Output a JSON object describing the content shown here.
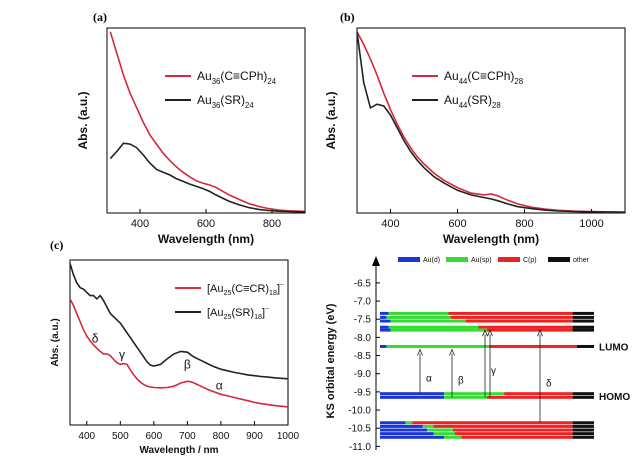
{
  "chart_data": [
    {
      "type": "line",
      "panel_label": "(a)",
      "xlabel": "Wavelength (nm)",
      "ylabel": "Abs. (a.u.)",
      "xlim": [
        300,
        900
      ],
      "x_ticks": [
        "400",
        "600",
        "800"
      ],
      "legend_placement": "top-right",
      "series": [
        {
          "name_base": "Au",
          "name_parts": [
            [
              "Au",
              "n"
            ],
            [
              "36",
              "sub"
            ],
            [
              "(C≡CPh)",
              "n"
            ],
            [
              "24",
              "sub"
            ]
          ],
          "color": "#d42a3a",
          "x": [
            310,
            330,
            350,
            370,
            390,
            410,
            430,
            450,
            470,
            490,
            510,
            530,
            550,
            570,
            590,
            610,
            630,
            650,
            670,
            700,
            730,
            760,
            790,
            820,
            850,
            880,
            900
          ],
          "y": [
            1.0,
            0.88,
            0.76,
            0.66,
            0.58,
            0.5,
            0.43,
            0.38,
            0.33,
            0.29,
            0.255,
            0.225,
            0.2,
            0.178,
            0.165,
            0.155,
            0.142,
            0.12,
            0.1,
            0.075,
            0.052,
            0.036,
            0.024,
            0.016,
            0.012,
            0.01,
            0.009
          ]
        },
        {
          "name_parts": [
            [
              "Au",
              "n"
            ],
            [
              "36",
              "sub"
            ],
            [
              "(SR)",
              "n"
            ],
            [
              "24",
              "sub"
            ]
          ],
          "color": "#222222",
          "x": [
            310,
            330,
            350,
            370,
            390,
            410,
            430,
            450,
            470,
            490,
            510,
            530,
            550,
            570,
            590,
            610,
            630,
            650,
            670,
            700,
            730,
            760,
            790,
            820,
            850,
            880,
            900
          ],
          "y": [
            0.3,
            0.34,
            0.385,
            0.38,
            0.36,
            0.32,
            0.275,
            0.24,
            0.225,
            0.21,
            0.19,
            0.175,
            0.16,
            0.148,
            0.135,
            0.12,
            0.1,
            0.082,
            0.065,
            0.045,
            0.03,
            0.02,
            0.014,
            0.01,
            0.008,
            0.007,
            0.006
          ]
        }
      ]
    },
    {
      "type": "line",
      "panel_label": "(b)",
      "xlabel": "Wavelength (nm)",
      "ylabel": "Abs. (a.u.)",
      "xlim": [
        300,
        1100
      ],
      "x_ticks": [
        "400",
        "600",
        "800",
        "1000"
      ],
      "legend_placement": "top-right",
      "series": [
        {
          "name_parts": [
            [
              "Au",
              "n"
            ],
            [
              "44",
              "sub"
            ],
            [
              "(C≡CPh)",
              "n"
            ],
            [
              "28",
              "sub"
            ]
          ],
          "color": "#d42a3a",
          "x": [
            300,
            320,
            340,
            360,
            380,
            400,
            420,
            440,
            460,
            480,
            500,
            530,
            560,
            600,
            640,
            680,
            700,
            720,
            750,
            780,
            820,
            860,
            900,
            950,
            1000,
            1050,
            1100
          ],
          "y": [
            1.0,
            0.93,
            0.85,
            0.76,
            0.66,
            0.57,
            0.49,
            0.42,
            0.36,
            0.31,
            0.27,
            0.22,
            0.18,
            0.14,
            0.11,
            0.1,
            0.105,
            0.095,
            0.07,
            0.05,
            0.032,
            0.022,
            0.015,
            0.01,
            0.008,
            0.006,
            0.005
          ]
        },
        {
          "name_parts": [
            [
              "Au",
              "n"
            ],
            [
              "44",
              "sub"
            ],
            [
              "(SR)",
              "n"
            ],
            [
              "28",
              "sub"
            ]
          ],
          "color": "#222222",
          "x": [
            300,
            320,
            340,
            360,
            380,
            400,
            420,
            440,
            460,
            480,
            500,
            530,
            560,
            600,
            640,
            680,
            700,
            720,
            750,
            780,
            820,
            860,
            900,
            950,
            1000,
            1050,
            1100
          ],
          "y": [
            1.0,
            0.72,
            0.58,
            0.6,
            0.59,
            0.54,
            0.47,
            0.4,
            0.34,
            0.29,
            0.25,
            0.2,
            0.165,
            0.125,
            0.1,
            0.085,
            0.078,
            0.068,
            0.05,
            0.035,
            0.024,
            0.016,
            0.011,
            0.008,
            0.006,
            0.005,
            0.004
          ]
        }
      ]
    },
    {
      "type": "line",
      "panel_label": "(c)",
      "xlabel": "Wavelength / nm",
      "ylabel": "Abs. (a.u.)",
      "xlim": [
        350,
        1000
      ],
      "x_ticks": [
        "400",
        "500",
        "600",
        "700",
        "800",
        "900",
        "1000"
      ],
      "legend_placement": "top-right",
      "series": [
        {
          "name_parts": [
            [
              "[Au",
              "n"
            ],
            [
              "25",
              "sub"
            ],
            [
              "(C≡CR)",
              "n"
            ],
            [
              "18",
              "sub"
            ],
            [
              "]",
              "n"
            ],
            [
              "−",
              "sup"
            ]
          ],
          "color": "#d42a3a",
          "x": [
            350,
            360,
            370,
            380,
            390,
            400,
            410,
            420,
            430,
            440,
            450,
            460,
            470,
            480,
            490,
            500,
            510,
            520,
            530,
            540,
            550,
            560,
            570,
            580,
            590,
            600,
            620,
            640,
            660,
            680,
            700,
            710,
            720,
            740,
            760,
            780,
            800,
            820,
            840,
            860,
            880,
            900,
            920,
            940,
            960,
            980,
            1000
          ],
          "y": [
            0.78,
            0.74,
            0.69,
            0.64,
            0.59,
            0.55,
            0.52,
            0.495,
            0.475,
            0.455,
            0.44,
            0.44,
            0.43,
            0.405,
            0.385,
            0.375,
            0.38,
            0.375,
            0.34,
            0.31,
            0.285,
            0.265,
            0.25,
            0.24,
            0.235,
            0.232,
            0.23,
            0.232,
            0.24,
            0.26,
            0.27,
            0.268,
            0.26,
            0.24,
            0.22,
            0.205,
            0.19,
            0.18,
            0.17,
            0.16,
            0.15,
            0.14,
            0.132,
            0.126,
            0.12,
            0.116,
            0.112
          ]
        },
        {
          "name_parts": [
            [
              "[Au",
              "n"
            ],
            [
              "25",
              "sub"
            ],
            [
              "(SR)",
              "n"
            ],
            [
              "18",
              "sub"
            ],
            [
              "]",
              "n"
            ],
            [
              "−",
              "sup"
            ]
          ],
          "color": "#222222",
          "x": [
            350,
            360,
            370,
            380,
            390,
            400,
            410,
            420,
            430,
            440,
            450,
            460,
            470,
            480,
            490,
            500,
            510,
            520,
            530,
            540,
            550,
            560,
            570,
            580,
            590,
            600,
            620,
            640,
            660,
            680,
            700,
            710,
            720,
            740,
            760,
            780,
            800,
            820,
            840,
            860,
            880,
            900,
            920,
            940,
            960,
            980,
            1000
          ],
          "y": [
            1.0,
            0.93,
            0.88,
            0.85,
            0.84,
            0.82,
            0.8,
            0.8,
            0.78,
            0.8,
            0.77,
            0.73,
            0.69,
            0.67,
            0.65,
            0.63,
            0.6,
            0.57,
            0.54,
            0.51,
            0.48,
            0.45,
            0.42,
            0.39,
            0.37,
            0.365,
            0.375,
            0.41,
            0.44,
            0.455,
            0.45,
            0.435,
            0.42,
            0.4,
            0.38,
            0.36,
            0.345,
            0.335,
            0.325,
            0.318,
            0.31,
            0.305,
            0.3,
            0.296,
            0.292,
            0.289,
            0.286
          ]
        }
      ],
      "annotations": [
        {
          "text": "δ",
          "x": 425,
          "y": 0.51
        },
        {
          "text": "γ",
          "x": 505,
          "y": 0.41
        },
        {
          "text": "β",
          "x": 700,
          "y": 0.35
        },
        {
          "text": "α",
          "x": 795,
          "y": 0.22
        }
      ]
    },
    {
      "type": "bar",
      "subtype": "orbital-level-diagram",
      "ylabel": "KS orbital energy (eV)",
      "ylim": [
        -11.1,
        -6.2
      ],
      "y_ticks": [
        "-6.5",
        "-7.0",
        "-7.5",
        "-8.0",
        "-8.5",
        "-9.0",
        "-9.5",
        "-10.0",
        "-10.5",
        "-11.0"
      ],
      "legend_placement": "top",
      "legend": [
        {
          "name": "Au(d)",
          "color": "#1a35d8"
        },
        {
          "name": "Au(sp)",
          "color": "#33dd33"
        },
        {
          "name": "C(p)",
          "color": "#ee2222"
        },
        {
          "name": "other",
          "color": "#111111"
        }
      ],
      "level_labels": [
        {
          "text": "LUMO",
          "energy": -8.25
        },
        {
          "text": "HOMO",
          "energy": -9.62
        }
      ],
      "levels": [
        {
          "energy": -7.34,
          "composition": {
            "au_d": 0.04,
            "au_sp": 0.28,
            "c_p": 0.58,
            "other": 0.1
          }
        },
        {
          "energy": -7.45,
          "composition": {
            "au_d": 0.03,
            "au_sp": 0.3,
            "c_p": 0.57,
            "other": 0.1
          }
        },
        {
          "energy": -7.55,
          "composition": {
            "au_d": 0.05,
            "au_sp": 0.35,
            "c_p": 0.5,
            "other": 0.1
          }
        },
        {
          "energy": -7.72,
          "composition": {
            "au_d": 0.04,
            "au_sp": 0.42,
            "c_p": 0.44,
            "other": 0.1
          }
        },
        {
          "energy": -7.8,
          "composition": {
            "au_d": 0.05,
            "au_sp": 0.45,
            "c_p": 0.4,
            "other": 0.1
          }
        },
        {
          "energy": -8.25,
          "composition": {
            "au_d": 0.03,
            "au_sp": 0.48,
            "c_p": 0.41,
            "other": 0.08
          }
        },
        {
          "energy": -9.55,
          "composition": {
            "au_d": 0.3,
            "au_sp": 0.28,
            "c_p": 0.32,
            "other": 0.1
          }
        },
        {
          "energy": -9.65,
          "composition": {
            "au_d": 0.3,
            "au_sp": 0.2,
            "c_p": 0.4,
            "other": 0.1
          }
        },
        {
          "energy": -10.35,
          "composition": {
            "au_d": 0.12,
            "au_sp": 0.03,
            "c_p": 0.75,
            "other": 0.1
          }
        },
        {
          "energy": -10.45,
          "composition": {
            "au_d": 0.2,
            "au_sp": 0.05,
            "c_p": 0.65,
            "other": 0.1
          }
        },
        {
          "energy": -10.55,
          "composition": {
            "au_d": 0.22,
            "au_sp": 0.12,
            "c_p": 0.56,
            "other": 0.1
          }
        },
        {
          "energy": -10.65,
          "composition": {
            "au_d": 0.25,
            "au_sp": 0.1,
            "c_p": 0.55,
            "other": 0.1
          }
        },
        {
          "energy": -10.75,
          "composition": {
            "au_d": 0.3,
            "au_sp": 0.08,
            "c_p": 0.52,
            "other": 0.1
          }
        }
      ],
      "transitions": [
        {
          "label": "α",
          "from": -9.55,
          "to": -8.25
        },
        {
          "label": "β",
          "from": -9.65,
          "to": -8.25
        },
        {
          "label": "γ",
          "from": -9.65,
          "to": -7.72
        },
        {
          "label": "γ",
          "from": -9.65,
          "to": -7.72
        },
        {
          "label": "δ",
          "from": -10.35,
          "to": -7.72
        }
      ]
    }
  ]
}
